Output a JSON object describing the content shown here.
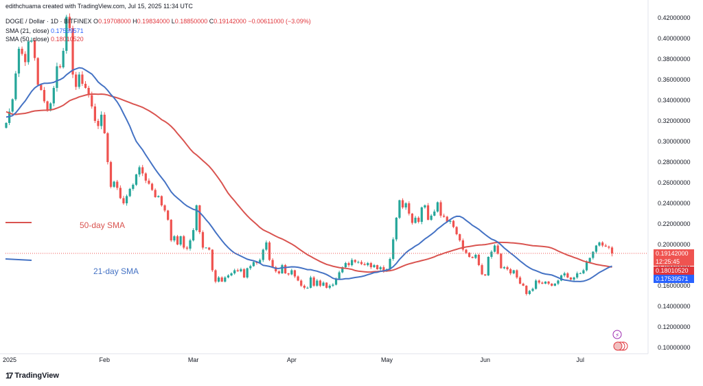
{
  "header": {
    "credit": "edithchuama created with TradingView.com, Jul 15, 2025 11:34 UTC",
    "symbol": "DOGE / Dollar · 1D · BITFINEX",
    "ohlc": [
      {
        "label": "O",
        "value": "0.19708000"
      },
      {
        "label": "H",
        "value": "0.19834000"
      },
      {
        "label": "L",
        "value": "0.18850000"
      },
      {
        "label": "C",
        "value": "0.19142000"
      }
    ],
    "change": "−0.00611000 (−3.09%)"
  },
  "legend": [
    {
      "label": "SMA (21, close)",
      "value": "0.17539571"
    },
    {
      "label": "SMA (50, close)",
      "value": "0.18010520"
    }
  ],
  "annotations": {
    "sma50": "50-day SMA",
    "sma21": "21-day SMA"
  },
  "price_tags": {
    "last": "0.19142000",
    "countdown": "12:25:45",
    "sma50": "0.18010520",
    "sma21": "0.17539571"
  },
  "brand": "TradingView",
  "colors": {
    "up": "#26a69a",
    "down": "#ef5350",
    "sma21": "#4472c4",
    "sma50": "#d9534f",
    "sma21_tag": "#2962ff",
    "sma50_tag": "#e0343a",
    "last_tag": "#ef5350"
  },
  "chart_data": {
    "type": "candlestick",
    "title": "DOGE / Dollar · 1D · BITFINEX",
    "ylim": [
      0.09,
      0.43
    ],
    "y_ticks": [
      "0.42000000",
      "0.40000000",
      "0.38000000",
      "0.36000000",
      "0.34000000",
      "0.32000000",
      "0.30000000",
      "0.28000000",
      "0.26000000",
      "0.24000000",
      "0.22000000",
      "0.20000000",
      "0.18000000",
      "0.16000000",
      "0.14000000",
      "0.12000000",
      "0.10000000"
    ],
    "x_ticks": [
      "2025",
      "Feb",
      "Mar",
      "Apr",
      "May",
      "Jun",
      "Jul"
    ],
    "x_tick_days": [
      0,
      31,
      59,
      90,
      120,
      151,
      181
    ],
    "days": 196,
    "close": [
      0.318,
      0.329,
      0.341,
      0.366,
      0.39,
      0.385,
      0.377,
      0.397,
      0.398,
      0.381,
      0.355,
      0.35,
      0.339,
      0.33,
      0.337,
      0.352,
      0.373,
      0.372,
      0.388,
      0.421,
      0.41,
      0.365,
      0.353,
      0.365,
      0.356,
      0.352,
      0.345,
      0.334,
      0.32,
      0.315,
      0.326,
      0.308,
      0.28,
      0.256,
      0.261,
      0.255,
      0.245,
      0.24,
      0.247,
      0.254,
      0.258,
      0.268,
      0.275,
      0.269,
      0.262,
      0.259,
      0.253,
      0.246,
      0.247,
      0.238,
      0.233,
      0.224,
      0.204,
      0.208,
      0.2,
      0.208,
      0.197,
      0.196,
      0.204,
      0.214,
      0.238,
      0.212,
      0.197,
      0.197,
      0.195,
      0.175,
      0.164,
      0.168,
      0.164,
      0.168,
      0.17,
      0.172,
      0.175,
      0.174,
      0.176,
      0.168,
      0.177,
      0.179,
      0.183,
      0.182,
      0.185,
      0.195,
      0.202,
      0.185,
      0.178,
      0.174,
      0.172,
      0.18,
      0.172,
      0.171,
      0.175,
      0.169,
      0.165,
      0.16,
      0.158,
      0.158,
      0.168,
      0.16,
      0.165,
      0.16,
      0.163,
      0.158,
      0.16,
      0.161,
      0.167,
      0.173,
      0.178,
      0.182,
      0.18,
      0.185,
      0.183,
      0.183,
      0.181,
      0.18,
      0.182,
      0.178,
      0.18,
      0.176,
      0.178,
      0.174,
      0.176,
      0.186,
      0.205,
      0.226,
      0.243,
      0.236,
      0.24,
      0.23,
      0.221,
      0.226,
      0.222,
      0.236,
      0.238,
      0.224,
      0.228,
      0.232,
      0.241,
      0.228,
      0.227,
      0.222,
      0.223,
      0.217,
      0.21,
      0.204,
      0.195,
      0.192,
      0.188,
      0.187,
      0.19,
      0.18,
      0.171,
      0.17,
      0.188,
      0.193,
      0.199,
      0.191,
      0.177,
      0.178,
      0.176,
      0.172,
      0.175,
      0.168,
      0.162,
      0.16,
      0.152,
      0.155,
      0.157,
      0.165,
      0.163,
      0.162,
      0.164,
      0.162,
      0.16,
      0.162,
      0.165,
      0.17,
      0.172,
      0.168,
      0.166,
      0.168,
      0.172,
      0.172,
      0.175,
      0.183,
      0.187,
      0.193,
      0.199,
      0.202,
      0.199,
      0.198,
      0.197,
      0.191
    ]
  }
}
